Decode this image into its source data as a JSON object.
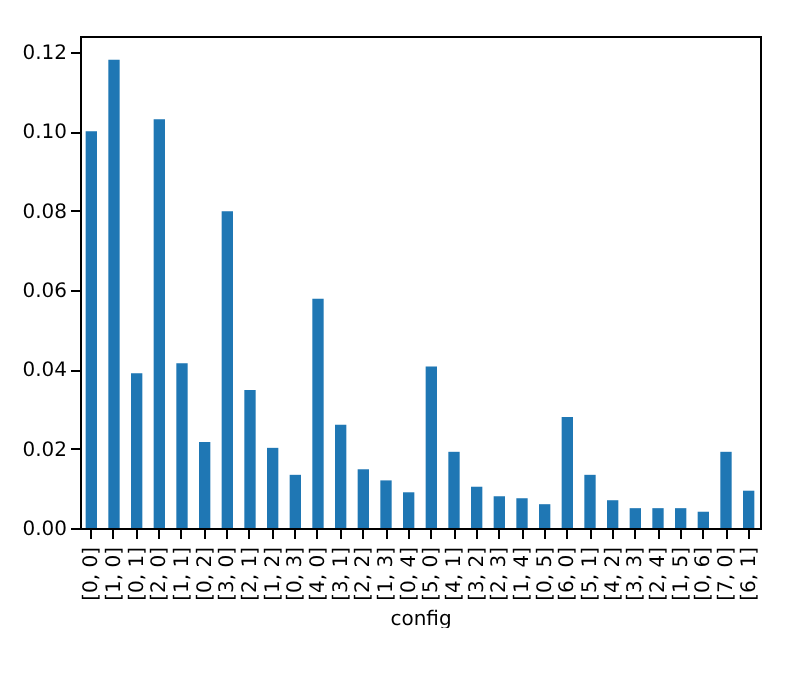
{
  "chart_data": {
    "type": "bar",
    "xlabel": "config",
    "categories": [
      "[0, 0]",
      "[1, 0]",
      "[0, 1]",
      "[2, 0]",
      "[1, 1]",
      "[0, 2]",
      "[3, 0]",
      "[2, 1]",
      "[1, 2]",
      "[0, 3]",
      "[4, 0]",
      "[3, 1]",
      "[2, 2]",
      "[1, 3]",
      "[0, 4]",
      "[5, 0]",
      "[4, 1]",
      "[3, 2]",
      "[2, 3]",
      "[1, 4]",
      "[0, 5]",
      "[6, 0]",
      "[5, 1]",
      "[4, 2]",
      "[3, 3]",
      "[2, 4]",
      "[1, 5]",
      "[0, 6]",
      "[7, 0]",
      "[6, 1]"
    ],
    "values": [
      0.1,
      0.118,
      0.039,
      0.103,
      0.0415,
      0.0217,
      0.0798,
      0.0348,
      0.0202,
      0.0134,
      0.0578,
      0.026,
      0.0148,
      0.012,
      0.009,
      0.0407,
      0.0192,
      0.0104,
      0.008,
      0.0075,
      0.006,
      0.028,
      0.0134,
      0.007,
      0.005,
      0.005,
      0.005,
      0.0041,
      0.0192,
      0.0094
    ],
    "color": "#1f77b4",
    "ylim": [
      0,
      0.124
    ],
    "yticks": [
      {
        "value": 0,
        "label": "0.00"
      },
      0.02,
      0.04,
      0.06,
      0.08,
      {
        "value": 0.1,
        "label": "0.10"
      },
      0.12
    ],
    "grid": false
  }
}
